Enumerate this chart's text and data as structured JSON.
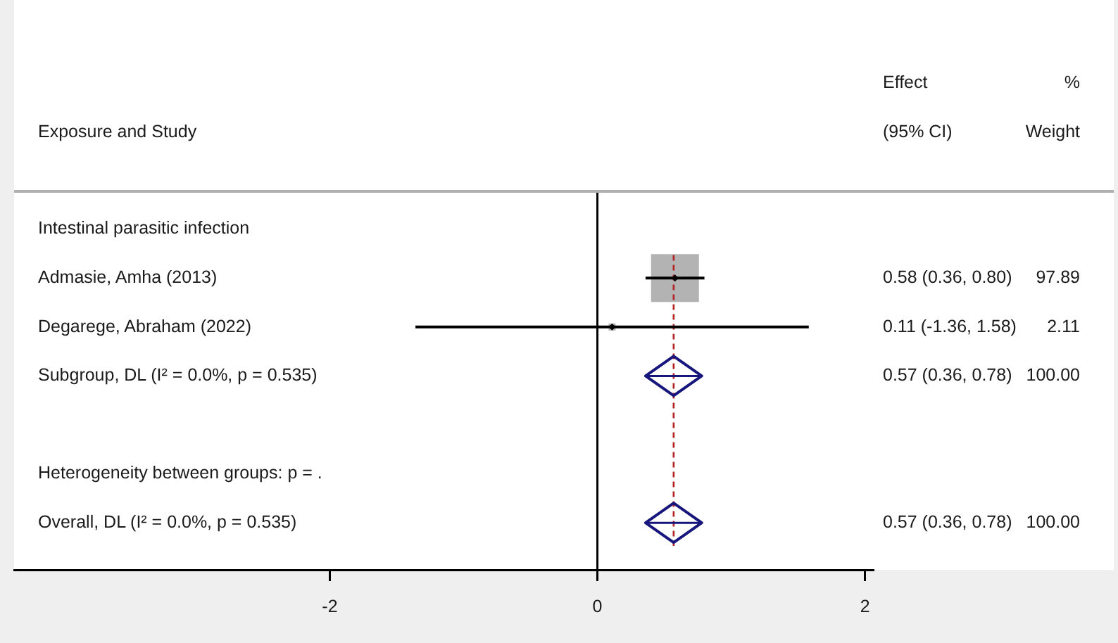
{
  "chart_data": {
    "type": "scatter",
    "orientation": "horizontal",
    "ylabel": "Exposure and Study",
    "annotations": [
      "Effect\n(95% CI)",
      "%\nWeight"
    ],
    "categories": [
      "Intestinal parasitic infection",
      "Admasie, Amha (2013)",
      "Degarege, Abraham (2022)",
      "Subgroup, DL (I² = 0.0%, p = 0.535)",
      null,
      "Heterogeneity between groups: p = .",
      "Overall, DL (I² = 0.0%, p = 0.535)"
    ],
    "series": [
      {
        "type": "bubble",
        "marker": "square",
        "color": "#b3b3b3",
        "values": [
          null,
          0.58,
          0.11,
          null,
          null,
          null,
          null
        ],
        "sizes": [
          null,
          1,
          0.0216,
          null,
          null,
          null,
          null
        ],
        "errors": [
          null,
          [
            0.36,
            0.8
          ],
          [
            -1.36,
            1.58
          ],
          null,
          null,
          null,
          null
        ],
        "value_labels": [
          null,
          "0.58 (0.36, 0.80) 97.89",
          "0.11 (-1.36, 1.58) 2.11",
          null,
          null,
          null,
          null
        ]
      },
      {
        "type": "scatter",
        "marker": "diamond",
        "color": "#000000",
        "values": [
          null,
          0.58,
          0.11,
          null,
          null,
          null,
          null
        ]
      },
      {
        "type": "scatter",
        "marker": "diamond",
        "color": "#16167c",
        "values": [
          null,
          null,
          null,
          0.57,
          null,
          null,
          0.57
        ],
        "errors": [
          null,
          null,
          null,
          [
            0.36,
            0.78
          ],
          null,
          null,
          [
            0.36,
            0.78
          ]
        ],
        "value_labels": [
          null,
          null,
          null,
          "0.57 (0.36, 0.78) 100.00",
          null,
          null,
          "0.57 (0.36, 0.78) 100.00"
        ]
      }
    ],
    "xlim": [
      -4.36,
      2.06
    ],
    "xticks": [
      -2,
      0,
      2
    ],
    "grid": false,
    "ref_lines": [
      {
        "axis": "x",
        "value": 0,
        "color": "#000000"
      },
      {
        "axis": "x",
        "value": 0.57,
        "color": "#b22222",
        "line_style": "dashed"
      }
    ]
  }
}
